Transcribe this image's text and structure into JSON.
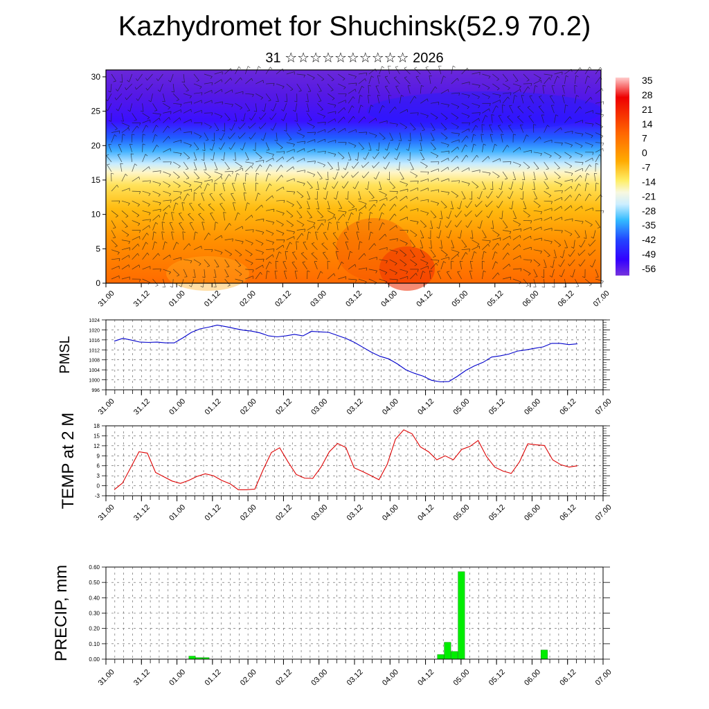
{
  "header": {
    "title": "Kazhydromet for Shuchinsk(52.9 70.2)",
    "subtitle": "31 ☆☆☆☆☆☆☆☆☆☆ 2026"
  },
  "time_labels": [
    "31.00",
    "31.12",
    "01.00",
    "01.12",
    "02.00",
    "02.12",
    "03.00",
    "03.12",
    "04.00",
    "04.12",
    "05.00",
    "05.12",
    "06.00",
    "06.12",
    "07.00"
  ],
  "chart_data": [
    {
      "type": "heatmap",
      "name": "cross-section",
      "x_labels": [
        "31.00",
        "31.12",
        "01.00",
        "01.12",
        "02.00",
        "02.12",
        "03.00",
        "03.12",
        "04.00",
        "04.12",
        "05.00",
        "05.12",
        "06.00",
        "06.12",
        "07.00"
      ],
      "y_ticks": [
        0,
        5,
        10,
        15,
        20,
        25,
        30
      ],
      "ylim": [
        0,
        31
      ],
      "colorbar_labels": [
        "35",
        "28",
        "21",
        "14",
        "7",
        "0",
        "-7",
        "-14",
        "-21",
        "-28",
        "-35",
        "-42",
        "-49",
        "-56"
      ],
      "level_profile": [
        {
          "y": 0,
          "t": 12
        },
        {
          "y": 3,
          "t": 10
        },
        {
          "y": 6,
          "t": 5
        },
        {
          "y": 9,
          "t": 0
        },
        {
          "y": 12,
          "t": -5
        },
        {
          "y": 15,
          "t": -12
        },
        {
          "y": 17,
          "t": -25
        },
        {
          "y": 19,
          "t": -40
        },
        {
          "y": 21,
          "t": -52
        },
        {
          "y": 24,
          "t": -58
        },
        {
          "y": 31,
          "t": -62
        }
      ],
      "wind": "barbs"
    },
    {
      "type": "line",
      "name": "pmsl",
      "ylabel": "PMSL",
      "ylim": [
        996,
        1024
      ],
      "y_ticks": [
        996,
        1000,
        1004,
        1008,
        1012,
        1016,
        1020,
        1024
      ],
      "x_labels": [
        "31.00",
        "31.12",
        "01.00",
        "01.12",
        "02.00",
        "02.12",
        "03.00",
        "03.12",
        "04.00",
        "04.12",
        "05.00",
        "05.12",
        "06.00",
        "06.12",
        "07.00"
      ],
      "color": "#0000cc",
      "values": [
        1015.5,
        1016.6,
        1015.9,
        1015.1,
        1015.0,
        1015.1,
        1014.8,
        1014.8,
        1016.8,
        1019.0,
        1020.4,
        1021.1,
        1021.9,
        1021.3,
        1020.6,
        1019.9,
        1019.5,
        1018.8,
        1017.6,
        1017.2,
        1017.6,
        1018.2,
        1017.6,
        1019.4,
        1019.2,
        1019.0,
        1017.8,
        1016.6,
        1015.0,
        1013.0,
        1011.0,
        1009.4,
        1008.4,
        1006.4,
        1004.0,
        1002.6,
        1001.5,
        999.8,
        999.2,
        999.3,
        1001.4,
        1003.8,
        1005.6,
        1007.0,
        1009.1,
        1009.6,
        1010.3,
        1011.5,
        1012.0,
        1012.6,
        1013.2,
        1014.6,
        1014.6,
        1014.1,
        1014.4
      ]
    },
    {
      "type": "line",
      "name": "temp2m",
      "ylabel": "TEMP at 2 M",
      "ylim": [
        -3,
        18
      ],
      "y_ticks": [
        -3,
        0,
        3,
        6,
        9,
        12,
        15,
        18
      ],
      "x_labels": [
        "31.00",
        "31.12",
        "01.00",
        "01.12",
        "02.00",
        "02.12",
        "03.00",
        "03.12",
        "04.00",
        "04.12",
        "05.00",
        "05.12",
        "06.00",
        "06.12",
        "07.00"
      ],
      "color": "#dd0000",
      "values": [
        -1.2,
        0.8,
        5.5,
        10.2,
        9.8,
        4.0,
        2.7,
        1.4,
        0.7,
        1.6,
        2.8,
        3.6,
        3.0,
        1.6,
        0.6,
        -1.2,
        -1.2,
        -1.0,
        4.8,
        10.0,
        11.4,
        7.2,
        3.4,
        2.3,
        2.2,
        5.6,
        10.2,
        12.7,
        11.5,
        5.4,
        4.3,
        3.1,
        1.8,
        6.4,
        14.0,
        16.8,
        15.6,
        11.7,
        10.2,
        7.8,
        9.0,
        7.8,
        10.9,
        11.8,
        13.6,
        8.8,
        5.6,
        4.4,
        3.7,
        7.2,
        12.6,
        12.3,
        12.1,
        7.8,
        6.3,
        5.6,
        6.0
      ]
    },
    {
      "type": "bar",
      "name": "precip",
      "ylabel": "PRECIP, mm",
      "ylim": [
        0,
        0.6
      ],
      "y_ticks": [
        "0.00",
        "0.10",
        "0.20",
        "0.30",
        "0.40",
        "0.50",
        "0.60"
      ],
      "x_labels": [
        "31.00",
        "31.12",
        "01.00",
        "01.12",
        "02.00",
        "02.12",
        "03.00",
        "03.12",
        "04.00",
        "04.12",
        "05.00",
        "05.12",
        "06.00",
        "06.12",
        "07.00"
      ],
      "color": "#00ee00",
      "bars": [
        {
          "x": 12,
          "value": 0.02
        },
        {
          "x": 13,
          "value": 0.01
        },
        {
          "x": 14,
          "value": 0.01
        },
        {
          "x": 48,
          "value": 0.03
        },
        {
          "x": 49,
          "value": 0.11
        },
        {
          "x": 50,
          "value": 0.05
        },
        {
          "x": 51,
          "value": 0.57
        },
        {
          "x": 63,
          "value": 0.06
        }
      ]
    }
  ]
}
